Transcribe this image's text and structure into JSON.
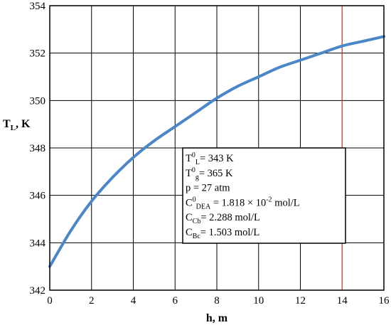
{
  "chart_data": {
    "type": "line",
    "xlabel": "h, m",
    "ylabel": {
      "main": "T",
      "sub": "L",
      "rest": ", K"
    },
    "xlim": [
      0,
      16
    ],
    "ylim": [
      342,
      354
    ],
    "xticks": [
      0,
      2,
      4,
      6,
      8,
      10,
      12,
      14,
      16
    ],
    "yticks": [
      342,
      344,
      346,
      348,
      350,
      352,
      354
    ],
    "grid": true,
    "series": [
      {
        "color": "#4a86c8",
        "x": [
          0,
          1,
          2,
          3,
          4,
          5,
          6,
          7,
          8,
          9,
          10,
          11,
          12,
          13,
          14,
          15,
          16
        ],
        "y": [
          343.0,
          344.5,
          345.75,
          346.75,
          347.6,
          348.3,
          348.9,
          349.5,
          350.1,
          350.6,
          351.0,
          351.4,
          351.7,
          352.0,
          352.3,
          352.5,
          352.7
        ]
      }
    ],
    "reference_lines": [
      {
        "axis": "x",
        "value": 14,
        "color": "#e8404a"
      }
    ],
    "annotation": {
      "lines": [
        [
          {
            "t": "T"
          },
          {
            "t": "0",
            "s": "sup"
          },
          {
            "t": "L",
            "s": "sub"
          },
          {
            "t": "= 343 K"
          }
        ],
        [
          {
            "t": "T"
          },
          {
            "t": "0",
            "s": "sup"
          },
          {
            "t": "g",
            "s": "sub"
          },
          {
            "t": "= 365 K"
          }
        ],
        [
          {
            "t": "p = 27 atm"
          }
        ],
        [
          {
            "t": "C"
          },
          {
            "t": "0",
            "s": "sup"
          },
          {
            "t": "DEA",
            "s": "sub"
          },
          {
            "t": " = 1.818 × 10"
          },
          {
            "t": "-2",
            "s": "sup"
          },
          {
            "t": " mol/L"
          }
        ],
        [
          {
            "t": "C"
          },
          {
            "t": "Cb",
            "s": "sub"
          },
          {
            "t": "= 2.288 mol/L"
          }
        ],
        [
          {
            "t": "C"
          },
          {
            "t": "Bc",
            "s": "sub"
          },
          {
            "t": "= 1.503 mol/L"
          }
        ]
      ]
    }
  }
}
